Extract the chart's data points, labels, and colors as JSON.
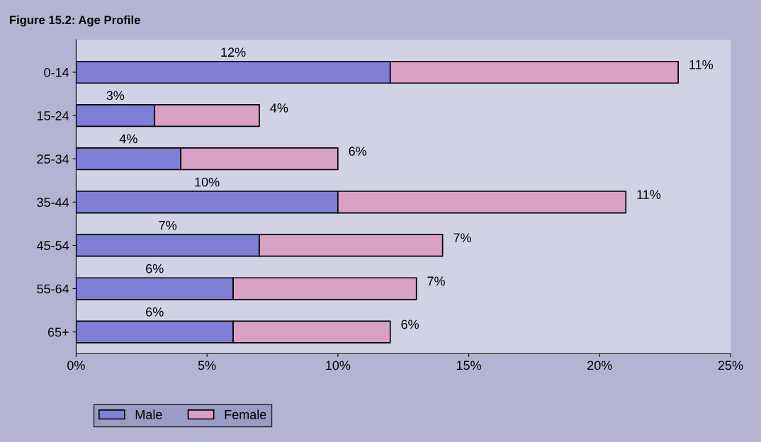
{
  "chart_data": {
    "type": "bar",
    "orientation": "horizontal",
    "stacked": true,
    "title": "Figure 15.2: Age Profile",
    "categories": [
      "0-14",
      "15-24",
      "25-34",
      "35-44",
      "45-54",
      "55-64",
      "65+"
    ],
    "series": [
      {
        "name": "Male",
        "color": "#7f7fd6",
        "values": [
          12,
          3,
          4,
          10,
          7,
          6,
          6
        ],
        "value_labels": [
          "12%",
          "3%",
          "4%",
          "10%",
          "7%",
          "6%",
          "6%"
        ]
      },
      {
        "name": "Female",
        "color": "#d7a0c4",
        "values": [
          11,
          4,
          6,
          11,
          7,
          7,
          6
        ],
        "value_labels": [
          "11%",
          "4%",
          "6%",
          "11%",
          "7%",
          "7%",
          "6%"
        ]
      }
    ],
    "xlim": [
      0,
      25
    ],
    "xticks": [
      {
        "value": 0,
        "label": "0%"
      },
      {
        "value": 5,
        "label": "5%"
      },
      {
        "value": 10,
        "label": "10%"
      },
      {
        "value": 15,
        "label": "15%"
      },
      {
        "value": 20,
        "label": "20%"
      },
      {
        "value": 25,
        "label": "25%"
      }
    ],
    "grid": false,
    "legend": "bottom left"
  }
}
